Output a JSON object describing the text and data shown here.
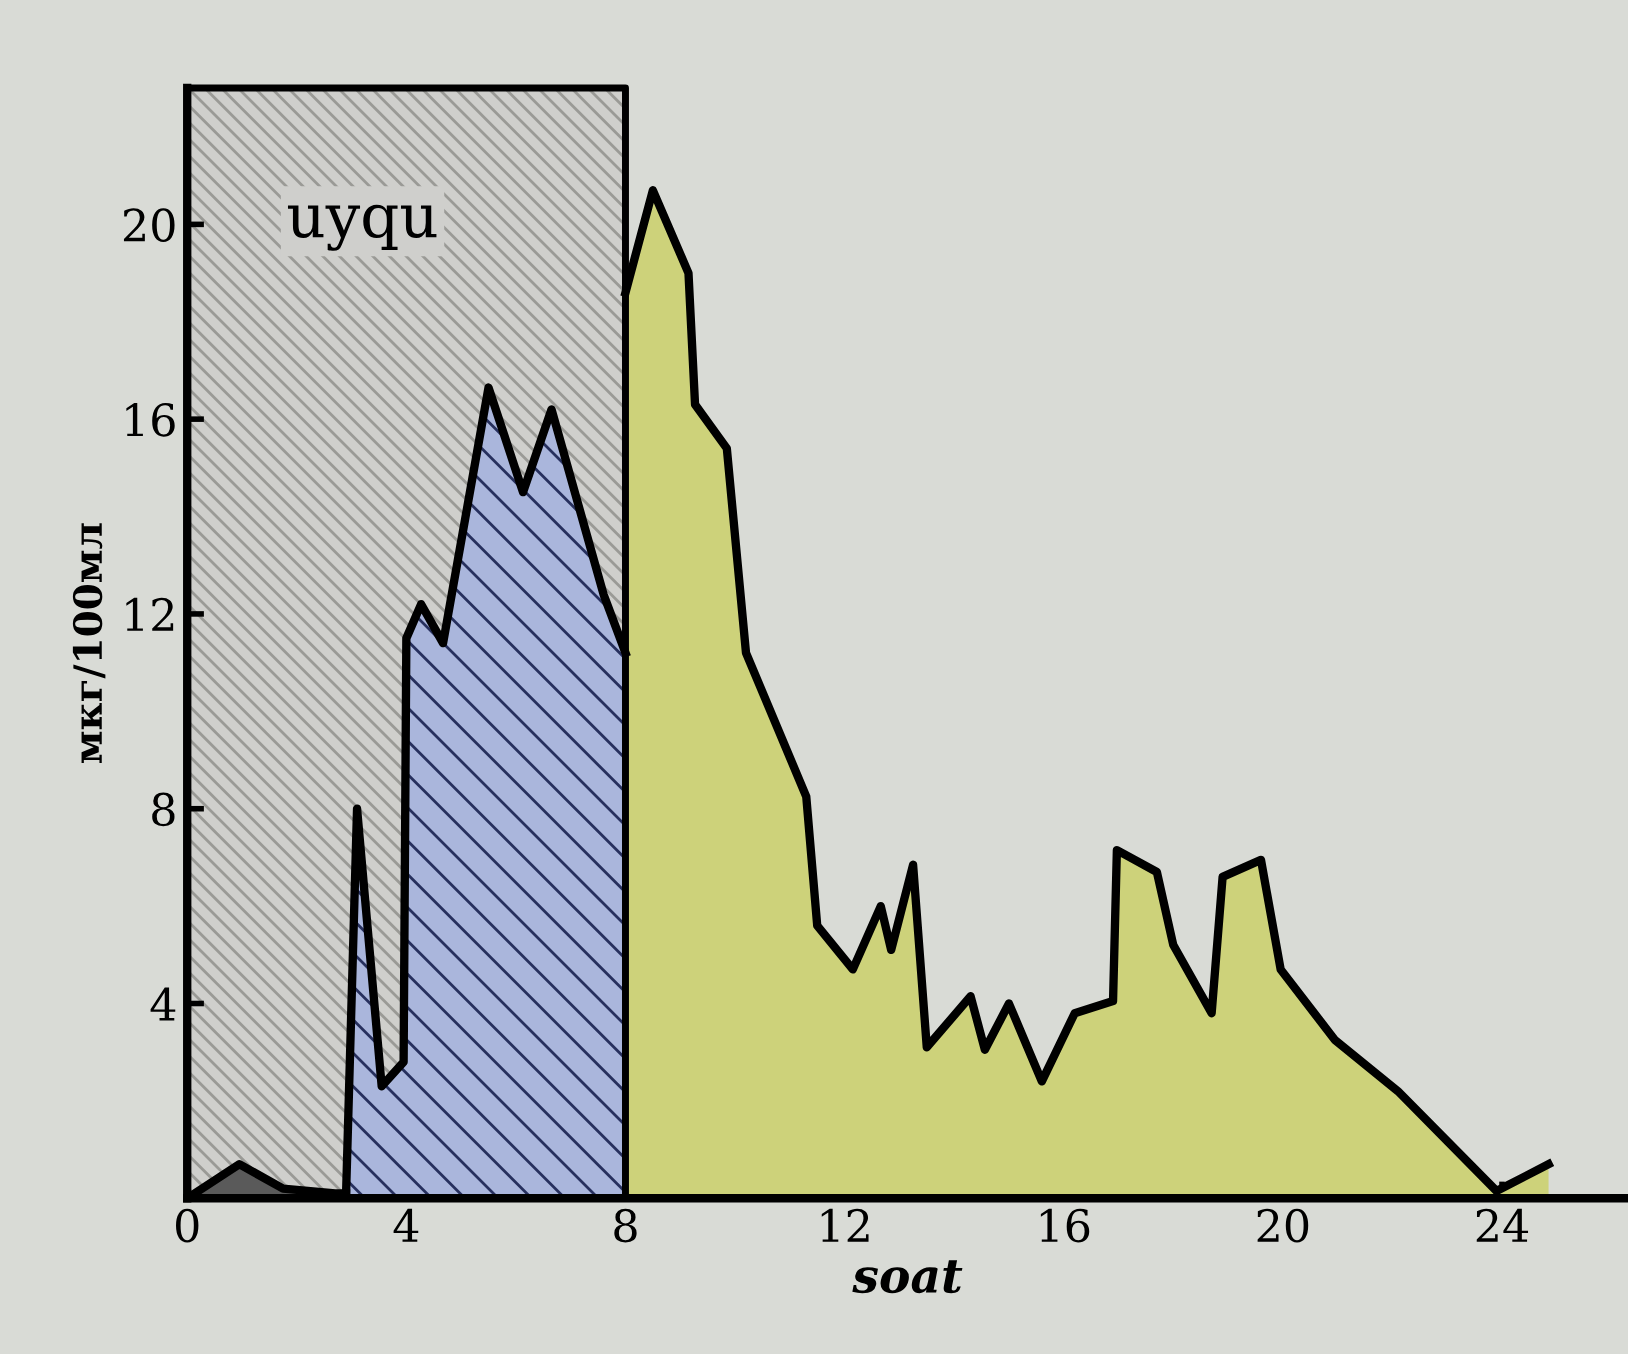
{
  "chart_data": {
    "type": "area",
    "xlabel": "soat",
    "ylabel": "мкг/100мл",
    "xlim": [
      0,
      26.3
    ],
    "ylim": [
      0,
      22.8
    ],
    "xticks": [
      0,
      4,
      8,
      12,
      16,
      20,
      24
    ],
    "yticks": [
      4,
      8,
      12,
      16,
      20
    ],
    "grid": false,
    "legend": false,
    "bands": [
      {
        "axis": "x",
        "from": 0,
        "to": 8,
        "label": "uyqu",
        "color": "#cfcfcc"
      }
    ],
    "series": [
      {
        "color": "#5a5a5a",
        "x": [
          0,
          0.95,
          1.75,
          2.7,
          2.9
        ],
        "values": [
          0,
          0.7,
          0.2,
          0.1,
          0.1
        ]
      },
      {
        "color": "#aab6dc",
        "x": [
          2.9,
          3.1,
          3.55,
          3.95,
          4.0,
          4.27,
          4.67,
          5.5,
          6.13,
          6.65,
          7.6,
          8.0
        ],
        "values": [
          0.1,
          8.0,
          2.3,
          2.8,
          11.5,
          12.2,
          11.4,
          16.65,
          14.5,
          16.2,
          12.4,
          11.2
        ]
      },
      {
        "color": "#cdd27a",
        "x": [
          8.0,
          8.5,
          9.15,
          9.27,
          9.85,
          10.2,
          11.3,
          11.5,
          12.15,
          12.66,
          12.85,
          13.25,
          13.5,
          14.3,
          14.56,
          15.0,
          15.6,
          16.2,
          16.9,
          16.97,
          17.7,
          18.0,
          18.7,
          18.9,
          19.6,
          19.96,
          20.95,
          22.1,
          23.9,
          24.85
        ],
        "values": [
          18.6,
          20.7,
          19.0,
          16.3,
          15.4,
          11.2,
          8.25,
          5.6,
          4.7,
          6.0,
          5.1,
          6.85,
          3.1,
          4.15,
          3.05,
          4.0,
          2.4,
          3.8,
          4.05,
          7.15,
          6.7,
          5.2,
          3.8,
          6.6,
          6.95,
          4.7,
          3.25,
          2.2,
          0.15,
          0.7
        ]
      }
    ]
  }
}
